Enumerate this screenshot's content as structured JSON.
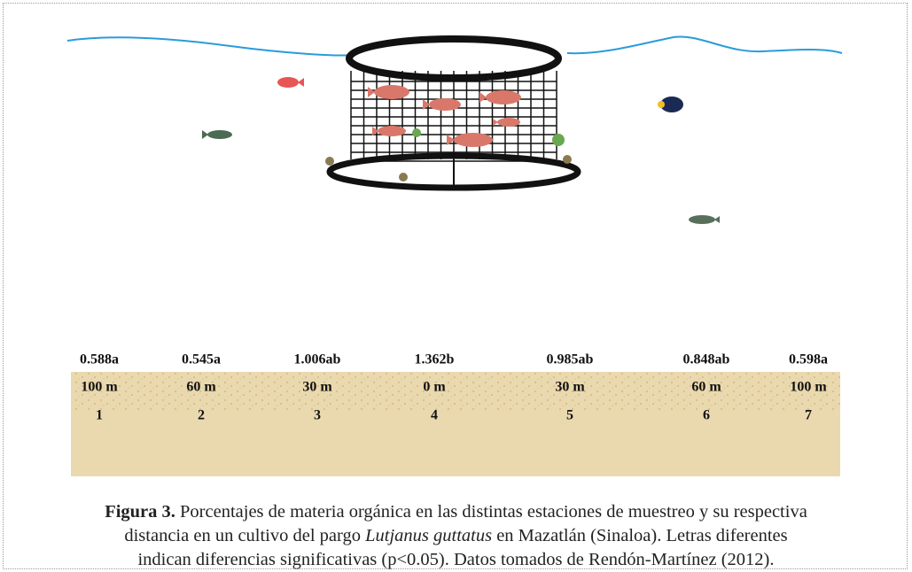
{
  "figure": {
    "stations": [
      {
        "value": "0.588a",
        "distance": "100 m",
        "number": "1"
      },
      {
        "value": "0.545a",
        "distance": "60 m",
        "number": "2"
      },
      {
        "value": "1.006ab",
        "distance": "30 m",
        "number": "3"
      },
      {
        "value": "1.362b",
        "distance": "0 m",
        "number": "4"
      },
      {
        "value": "0.985ab",
        "distance": "30 m",
        "number": "5"
      },
      {
        "value": "0.848ab",
        "distance": "60 m",
        "number": "6"
      },
      {
        "value": "0.598a",
        "distance": "100 m",
        "number": "7"
      }
    ]
  },
  "caption": {
    "label": "Figura 3.",
    "text1": " Porcentajes de materia orgánica en las distintas estaciones de muestreo y su respectiva",
    "text2": "distancia en un cultivo del pargo ",
    "species": "Lutjanus guttatus",
    "text3": " en Mazatlán (Sinaloa). Letras diferentes",
    "text4": "indican diferencias significativas (p<0.05). Datos tomados de Rendón-Martínez (2012)."
  }
}
